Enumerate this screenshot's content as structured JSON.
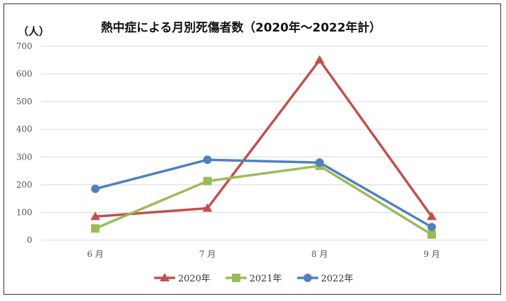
{
  "chart_data": {
    "type": "line",
    "title": "熱中症による月別死傷者数（2020年〜2022年計）",
    "ylabel": "（人）",
    "xlabel": "",
    "categories": [
      "6 月",
      "7 月",
      "8 月",
      "9 月"
    ],
    "ylim": [
      0,
      700
    ],
    "yticks": [
      0,
      100,
      200,
      300,
      400,
      500,
      600,
      700
    ],
    "grid": true,
    "legend_position": "bottom",
    "series": [
      {
        "name": "2020年",
        "values": [
          85,
          115,
          650,
          85
        ],
        "color": "#c0504d",
        "marker": "triangle"
      },
      {
        "name": "2021年",
        "values": [
          42,
          213,
          268,
          20
        ],
        "color": "#9bbb59",
        "marker": "square"
      },
      {
        "name": "2022年",
        "values": [
          185,
          290,
          280,
          47
        ],
        "color": "#4f81bd",
        "marker": "circle"
      }
    ]
  }
}
